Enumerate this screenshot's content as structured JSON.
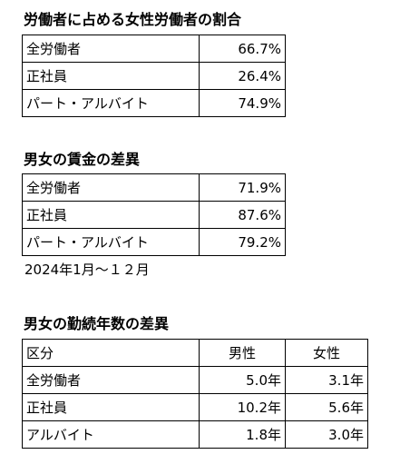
{
  "section1": {
    "title": "労働者に占める女性労働者の割合",
    "rows": [
      {
        "label": "全労働者",
        "value": "66.7%"
      },
      {
        "label": "正社員",
        "value": "26.4%"
      },
      {
        "label": "パート・アルバイト",
        "value": "74.9%"
      }
    ]
  },
  "section2": {
    "title": "男女の賃金の差異",
    "rows": [
      {
        "label": "全労働者",
        "value": "71.9%"
      },
      {
        "label": "正社員",
        "value": "87.6%"
      },
      {
        "label": "パート・アルバイト",
        "value": "79.2%"
      }
    ],
    "note": "2024年1月～１２月"
  },
  "section3": {
    "title": "男女の勤続年数の差異",
    "headers": [
      "区分",
      "男性",
      "女性"
    ],
    "rows": [
      {
        "label": "全労働者",
        "male": "5.0年",
        "female": "3.1年"
      },
      {
        "label": "正社員",
        "male": "10.2年",
        "female": "5.6年"
      },
      {
        "label": "アルバイト",
        "male": "1.8年",
        "female": "3.0年"
      }
    ]
  }
}
